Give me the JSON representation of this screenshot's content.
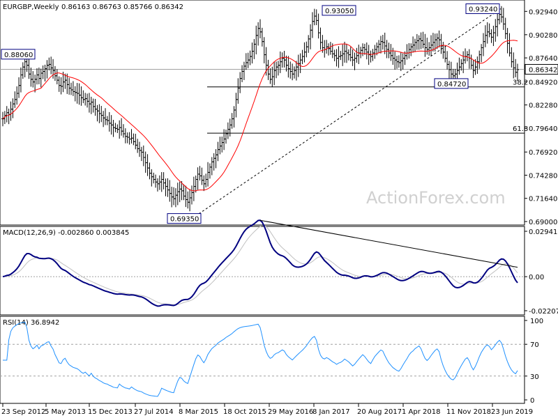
{
  "chart_data": [
    {
      "type": "ohlc",
      "title": "EURGBP,Weekly",
      "ohlc_label": "0.86163 0.86763 0.85766 0.86342",
      "last_price": 0.86342,
      "ylim": [
        0.69,
        0.936
      ],
      "y_ticks": [
        0.9294,
        0.9028,
        0.8764,
        0.8492,
        0.8228,
        0.7964,
        0.7692,
        0.7428,
        0.7164,
        0.69
      ],
      "x_ticks": [
        "23 Sep 2012",
        "5 May 2013",
        "15 Dec 2013",
        "27 Jul 2014",
        "8 Mar 2015",
        "18 Oct 2015",
        "29 May 2016",
        "8 Jan 2017",
        "20 Aug 2017",
        "1 Apr 2018",
        "11 Nov 2018",
        "23 Jun 2019"
      ],
      "annotations": [
        {
          "text": "0.88060",
          "value": 0.8806
        },
        {
          "text": "0.69350",
          "value": 0.6935
        },
        {
          "text": "0.93050",
          "value": 0.9305
        },
        {
          "text": "0.93240",
          "value": 0.9324
        },
        {
          "text": "0.84720",
          "value": 0.8472
        }
      ],
      "fib_levels": [
        {
          "label": "38.2",
          "value": 0.8434
        },
        {
          "label": "61.8",
          "value": 0.7907
        }
      ],
      "close_series": [
        0.807,
        0.811,
        0.814,
        0.812,
        0.818,
        0.824,
        0.829,
        0.836,
        0.845,
        0.857,
        0.866,
        0.872,
        0.868,
        0.858,
        0.852,
        0.849,
        0.852,
        0.857,
        0.853,
        0.859,
        0.861,
        0.864,
        0.868,
        0.869,
        0.865,
        0.862,
        0.856,
        0.851,
        0.845,
        0.844,
        0.849,
        0.851,
        0.846,
        0.842,
        0.84,
        0.838,
        0.837,
        0.836,
        0.834,
        0.831,
        0.829,
        0.83,
        0.827,
        0.824,
        0.826,
        0.821,
        0.818,
        0.816,
        0.813,
        0.811,
        0.808,
        0.806,
        0.805,
        0.802,
        0.8,
        0.797,
        0.796,
        0.795,
        0.797,
        0.793,
        0.79,
        0.787,
        0.786,
        0.784,
        0.785,
        0.781,
        0.777,
        0.773,
        0.771,
        0.769,
        0.763,
        0.757,
        0.751,
        0.745,
        0.741,
        0.738,
        0.735,
        0.733,
        0.735,
        0.738,
        0.734,
        0.73,
        0.726,
        0.722,
        0.718,
        0.716,
        0.72,
        0.724,
        0.727,
        0.725,
        0.719,
        0.715,
        0.712,
        0.717,
        0.723,
        0.73,
        0.738,
        0.744,
        0.742,
        0.737,
        0.733,
        0.738,
        0.746,
        0.752,
        0.758,
        0.762,
        0.766,
        0.772,
        0.776,
        0.78,
        0.784,
        0.79,
        0.795,
        0.8,
        0.807,
        0.817,
        0.829,
        0.842,
        0.853,
        0.861,
        0.867,
        0.871,
        0.874,
        0.878,
        0.884,
        0.892,
        0.902,
        0.91,
        0.906,
        0.895,
        0.88,
        0.868,
        0.858,
        0.852,
        0.855,
        0.862,
        0.866,
        0.868,
        0.872,
        0.876,
        0.874,
        0.868,
        0.864,
        0.861,
        0.858,
        0.862,
        0.866,
        0.87,
        0.874,
        0.878,
        0.883,
        0.889,
        0.898,
        0.908,
        0.918,
        0.924,
        0.919,
        0.905,
        0.894,
        0.888,
        0.886,
        0.889,
        0.887,
        0.884,
        0.881,
        0.879,
        0.876,
        0.878,
        0.879,
        0.881,
        0.884,
        0.882,
        0.88,
        0.877,
        0.874,
        0.876,
        0.879,
        0.882,
        0.885,
        0.888,
        0.886,
        0.883,
        0.88,
        0.878,
        0.882,
        0.886,
        0.889,
        0.892,
        0.895,
        0.894,
        0.89,
        0.886,
        0.882,
        0.879,
        0.876,
        0.874,
        0.872,
        0.871,
        0.873,
        0.876,
        0.879,
        0.882,
        0.886,
        0.889,
        0.891,
        0.894,
        0.896,
        0.898,
        0.896,
        0.892,
        0.888,
        0.886,
        0.888,
        0.891,
        0.894,
        0.897,
        0.899,
        0.897,
        0.89,
        0.883,
        0.876,
        0.869,
        0.863,
        0.858,
        0.856,
        0.858,
        0.862,
        0.866,
        0.87,
        0.874,
        0.878,
        0.88,
        0.876,
        0.868,
        0.862,
        0.866,
        0.872,
        0.88,
        0.888,
        0.895,
        0.902,
        0.906,
        0.904,
        0.9,
        0.905,
        0.912,
        0.92,
        0.926,
        0.923,
        0.915,
        0.904,
        0.893,
        0.882,
        0.872,
        0.865,
        0.86,
        0.863
      ],
      "fast_ma_color": "#ff0000",
      "trendline": {
        "style": "dashed",
        "from_value": 0.6935,
        "to_value": 0.9324
      }
    },
    {
      "type": "line",
      "title": "MACD(12,26,9) -0.002860 0.003845",
      "ylim": [
        -0.022074,
        0.029412
      ],
      "y_ticks": [
        0.029412,
        0.0,
        -0.022074
      ],
      "y_tick_labels": [
        "0.029412",
        "0.00",
        "-0.022074"
      ],
      "series": [
        {
          "name": "MACD",
          "color": "#000080"
        },
        {
          "name": "Signal",
          "color": "#c0c0c0"
        }
      ],
      "macd_last": -0.00286,
      "signal_last": 0.003845,
      "trendline": {
        "style": "solid"
      }
    },
    {
      "type": "line",
      "title": "RSI(14) 36.8942",
      "ylim": [
        0,
        100
      ],
      "y_ticks": [
        100,
        70,
        30,
        0
      ],
      "levels": [
        70,
        30
      ],
      "last_value": 36.8942,
      "series": [
        {
          "name": "RSI",
          "color": "#1e90ff"
        }
      ]
    }
  ],
  "watermark": "ActionForex.com"
}
